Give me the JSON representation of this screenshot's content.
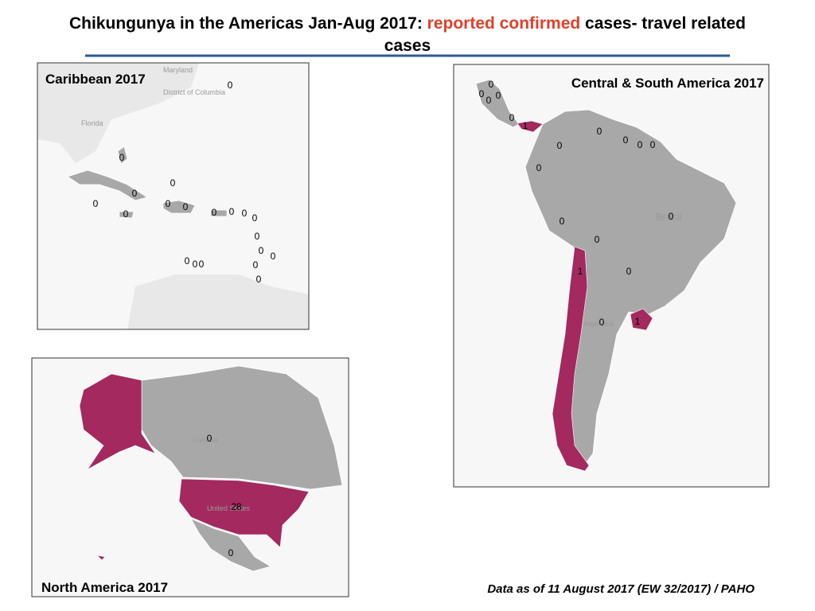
{
  "title": {
    "part1": "Chikungunya in the Americas Jan-Aug 2017:",
    "highlight": "reported confirmed",
    "part2": "cases- travel related",
    "part3": "cases"
  },
  "maps": [
    {
      "label": "Caribbean 2017",
      "base_labels": [
        "Maryland",
        "District of Columbia",
        "Florida"
      ],
      "counts": [
        0,
        0,
        0,
        0,
        0,
        0,
        0,
        0,
        0,
        0,
        0,
        0,
        0,
        0,
        0,
        0,
        0,
        0,
        0,
        0
      ]
    },
    {
      "label": "Central & South America  2017",
      "base_labels": [
        "Brasil",
        "Argentina"
      ],
      "counts": [
        0,
        0,
        0,
        0,
        0,
        1,
        0,
        0,
        0,
        0,
        0,
        0,
        0,
        0,
        0,
        1,
        0,
        0,
        1
      ]
    },
    {
      "label": "North America  2017",
      "base_labels": [
        "Canada",
        "United States"
      ],
      "counts": [
        0,
        28,
        0
      ]
    }
  ],
  "footnote": "Data as of 11 August 2017 (EW 32/2017) / PAHO"
}
